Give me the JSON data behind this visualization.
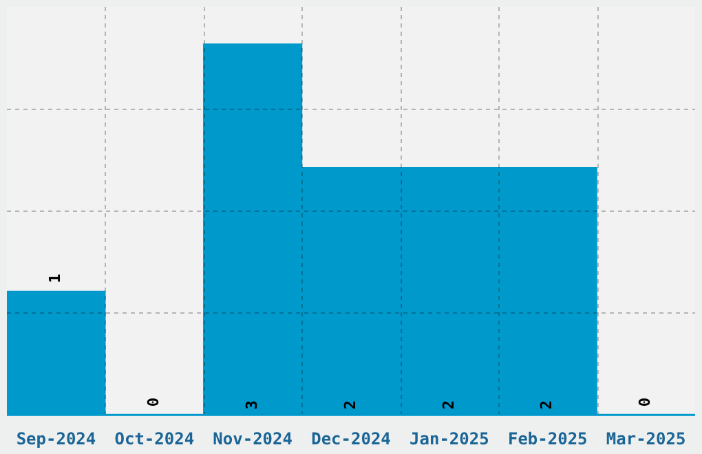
{
  "chart_data": {
    "type": "bar",
    "categories": [
      "Sep-2024",
      "Oct-2024",
      "Nov-2024",
      "Dec-2024",
      "Jan-2025",
      "Feb-2025",
      "Mar-2025"
    ],
    "values": [
      1,
      0,
      3,
      2,
      2,
      2,
      0
    ],
    "color": "#0099cc",
    "ylim": [
      0,
      3.3
    ],
    "grid": true,
    "data_labels": true,
    "tick_labels": "x",
    "legend": false
  }
}
